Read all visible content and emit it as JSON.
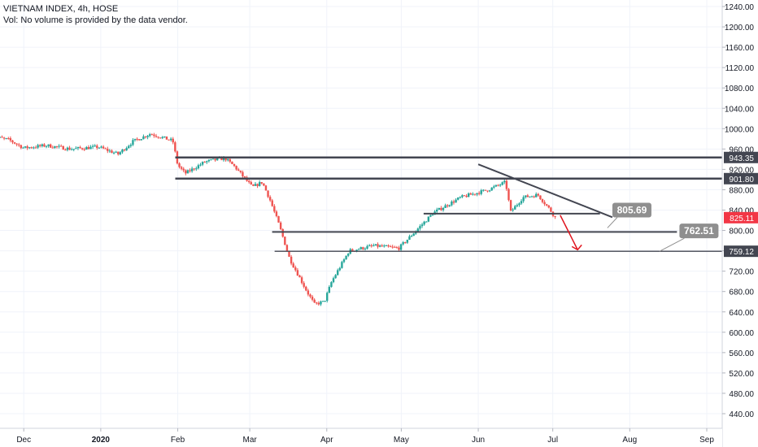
{
  "header": {
    "symbol_line": "VIETNAM INDEX, 4h, HOSE",
    "volume_line": "Vol: No volume is provided by the data vendor."
  },
  "chart_data": {
    "type": "candlestick",
    "x_tick_labels": [
      "Dec",
      "2020",
      "Feb",
      "Mar",
      "Apr",
      "May",
      "Jun",
      "Jul",
      "Aug",
      "Sep"
    ],
    "y_tick_labels": [
      1240,
      1200,
      1160,
      1120,
      1080,
      1040,
      1000,
      960,
      920,
      880,
      840,
      800,
      760,
      720,
      680,
      640,
      600,
      560,
      520,
      480,
      440
    ],
    "ylim": [
      415,
      1255
    ],
    "horizontal_levels": [
      {
        "label": "943.35",
        "value": 943.35,
        "from": "2020-01-31",
        "style": "thick"
      },
      {
        "label": "901.80",
        "value": 901.8,
        "from": "2020-01-31",
        "style": "thick"
      },
      {
        "label": "759.12",
        "value": 759.12,
        "from": "2020-03-11",
        "style": "thin"
      }
    ],
    "segments": [
      {
        "value": 833,
        "from": "2020-05-10",
        "to": "2020-07-20"
      },
      {
        "value": 797,
        "from": "2020-03-10",
        "to": "2020-08-20"
      }
    ],
    "trendline": {
      "from": [
        "2020-06-01",
        930
      ],
      "to": [
        "2020-07-25",
        826
      ]
    },
    "price_label": {
      "text": "825.11",
      "value": 825.11,
      "color": "#f23645"
    },
    "callouts": [
      {
        "text": "805.69",
        "anchor": [
          "2020-07-23",
          805
        ],
        "box": [
          "2020-07-25",
          840
        ]
      },
      {
        "text": "762.51",
        "anchor": [
          "2020-08-13",
          759
        ],
        "box": [
          "2020-08-21",
          799
        ]
      }
    ],
    "projection_arrow": {
      "from": [
        "2020-07-04",
        830
      ],
      "to": [
        "2020-07-11",
        762
      ],
      "color": "#e0141e"
    },
    "series_anchors": [
      [
        "2019-11-18",
        985
      ],
      [
        "2019-11-25",
        978
      ],
      [
        "2019-12-01",
        962
      ],
      [
        "2019-12-10",
        967
      ],
      [
        "2019-12-20",
        960
      ],
      [
        "2019-12-31",
        964
      ],
      [
        "2020-01-08",
        950
      ],
      [
        "2020-01-14",
        975
      ],
      [
        "2020-01-21",
        990
      ],
      [
        "2020-01-30",
        976
      ],
      [
        "2020-02-01",
        928
      ],
      [
        "2020-02-04",
        912
      ],
      [
        "2020-02-12",
        935
      ],
      [
        "2020-02-20",
        942
      ],
      [
        "2020-02-24",
        925
      ],
      [
        "2020-03-02",
        885
      ],
      [
        "2020-03-06",
        895
      ],
      [
        "2020-03-09",
        862
      ],
      [
        "2020-03-13",
        808
      ],
      [
        "2020-03-17",
        745
      ],
      [
        "2020-03-24",
        680
      ],
      [
        "2020-03-27",
        655
      ],
      [
        "2020-03-31",
        660
      ],
      [
        "2020-04-03",
        700
      ],
      [
        "2020-04-10",
        760
      ],
      [
        "2020-04-20",
        770
      ],
      [
        "2020-04-24",
        768
      ],
      [
        "2020-04-30",
        765
      ],
      [
        "2020-05-06",
        795
      ],
      [
        "2020-05-14",
        835
      ],
      [
        "2020-05-25",
        865
      ],
      [
        "2020-06-05",
        880
      ],
      [
        "2020-06-12",
        895
      ],
      [
        "2020-06-14",
        836
      ],
      [
        "2020-06-19",
        865
      ],
      [
        "2020-06-25",
        870
      ],
      [
        "2020-06-30",
        840
      ],
      [
        "2020-07-02",
        825
      ]
    ]
  },
  "colors": {
    "up": "#26a69a",
    "down": "#ef5350",
    "level_line": "#434651",
    "label_bg": "#434651",
    "callout_bg": "#8f8f8f",
    "grid": "#f0f3fa",
    "axis_text": "#131722"
  }
}
